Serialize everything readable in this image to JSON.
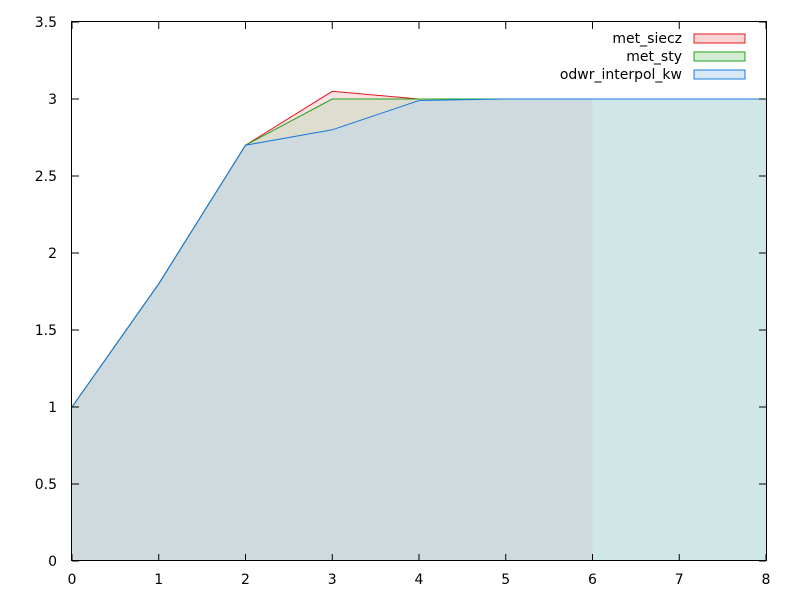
{
  "chart_data": {
    "type": "area",
    "title": "",
    "xlabel": "",
    "ylabel": "",
    "xlim": [
      0,
      8
    ],
    "ylim": [
      0,
      3.5
    ],
    "grid": false,
    "legend_position": "top-right",
    "x_ticks": [
      "0",
      "1",
      "2",
      "3",
      "4",
      "5",
      "6",
      "7",
      "8"
    ],
    "y_ticks": [
      "0",
      "0.5",
      "1",
      "1.5",
      "2",
      "2.5",
      "3",
      "3.5"
    ],
    "series": [
      {
        "name": "met_siecz",
        "color": "#e41a1c",
        "fill": "#f2aab0",
        "points": [
          [
            0,
            1.0
          ],
          [
            1,
            1.8
          ],
          [
            2,
            2.7
          ],
          [
            3,
            3.05
          ],
          [
            4,
            3.0
          ],
          [
            5,
            3.0
          ],
          [
            6,
            3.0
          ]
        ]
      },
      {
        "name": "met_sty",
        "color": "#1ca41c",
        "fill": "#a9d8a9",
        "points": [
          [
            0,
            1.0
          ],
          [
            1,
            1.8
          ],
          [
            2,
            2.7
          ],
          [
            3,
            3.0
          ],
          [
            4,
            3.0
          ],
          [
            5,
            3.0
          ],
          [
            6,
            3.0
          ],
          [
            7,
            3.0
          ],
          [
            8,
            3.0
          ]
        ]
      },
      {
        "name": "odwr_interpol_kw",
        "color": "#1a7ae0",
        "fill": "#b3d4f5",
        "points": [
          [
            0,
            1.0
          ],
          [
            1,
            1.8
          ],
          [
            2,
            2.7
          ],
          [
            3,
            2.8
          ],
          [
            4,
            2.99
          ],
          [
            5,
            3.0
          ],
          [
            6,
            3.0
          ],
          [
            7,
            3.0
          ],
          [
            8,
            3.0
          ]
        ]
      }
    ]
  }
}
